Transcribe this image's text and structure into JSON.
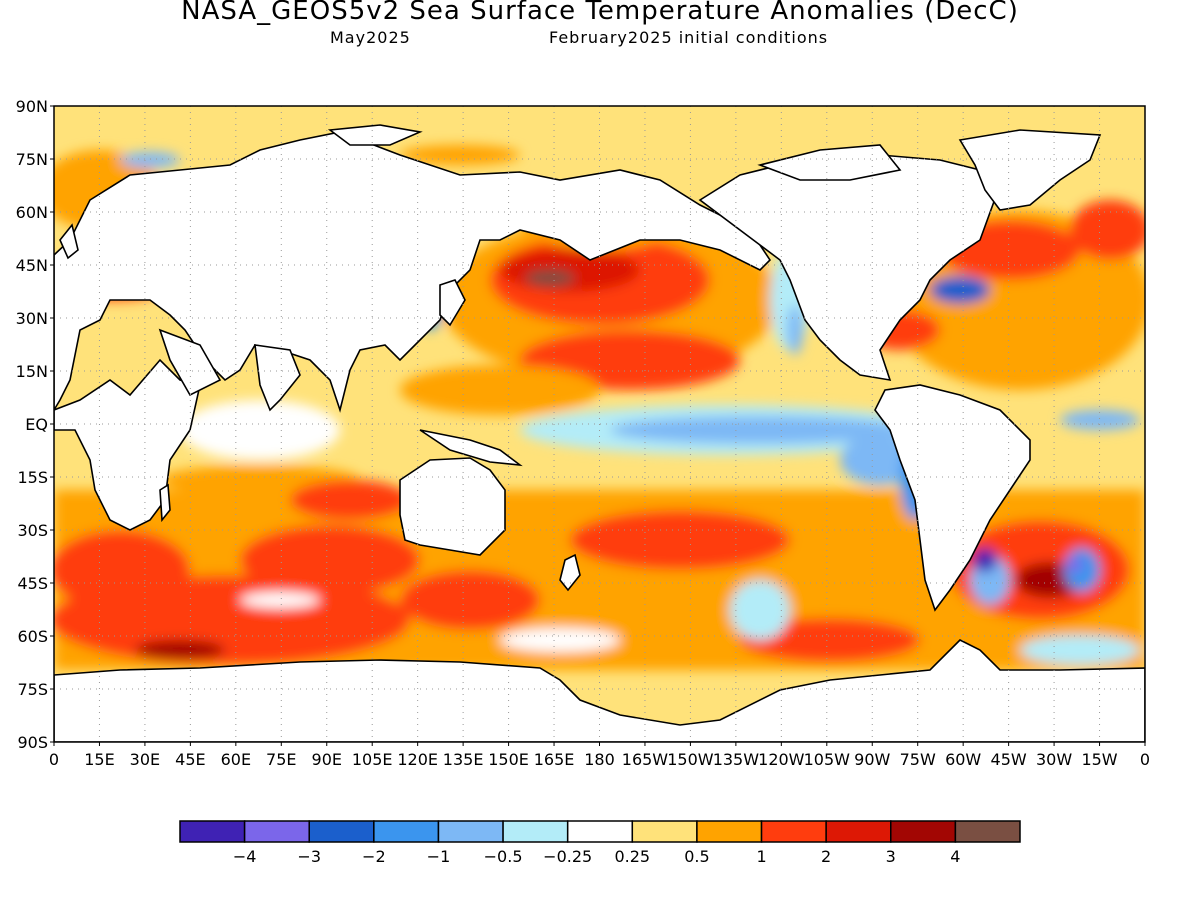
{
  "title": "NASA_GEOS5v2 Sea Surface Temperature Anomalies (DecC)",
  "subtitle_left": "May2025",
  "subtitle_right": "February2025 initial conditions",
  "lat_labels": [
    "90N",
    "75N",
    "60N",
    "45N",
    "30N",
    "15N",
    "EQ",
    "15S",
    "30S",
    "45S",
    "60S",
    "75S",
    "90S"
  ],
  "lon_labels": [
    "0",
    "15E",
    "30E",
    "45E",
    "60E",
    "75E",
    "90E",
    "105E",
    "120E",
    "135E",
    "150E",
    "165E",
    "180",
    "165W",
    "150W",
    "135W",
    "120W",
    "105W",
    "90W",
    "75W",
    "60W",
    "45W",
    "30W",
    "15W",
    "0"
  ],
  "legend": {
    "colors": [
      "#3f22b4",
      "#7b66ea",
      "#1b5fcc",
      "#3b95ee",
      "#7db8f5",
      "#b3ecf8",
      "#ffffff",
      "#ffe27a",
      "#ffa300",
      "#ff3d0e",
      "#dd1805",
      "#a20603",
      "#7a4f42"
    ],
    "tick_labels": [
      "−4",
      "−3",
      "−2",
      "−1",
      "−0.5",
      "−0.25",
      "0.25",
      "0.5",
      "1",
      "2",
      "3",
      "4"
    ]
  },
  "colors": {
    "land": "#ffffff",
    "coast": "#000000",
    "arctic_ice": "#ffe27a"
  }
}
